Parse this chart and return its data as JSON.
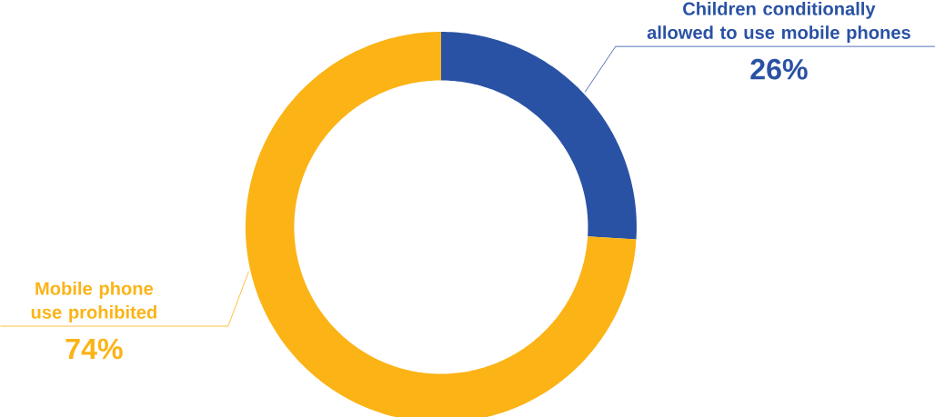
{
  "chart_data": {
    "type": "donut",
    "categories": [
      "Children conditionally allowed to use mobile phones",
      "Mobile phone use prohibited"
    ],
    "values": [
      26,
      74
    ],
    "colors": [
      "#2a52a4",
      "#fbb316"
    ],
    "value_labels": [
      "26%",
      "74%"
    ]
  }
}
